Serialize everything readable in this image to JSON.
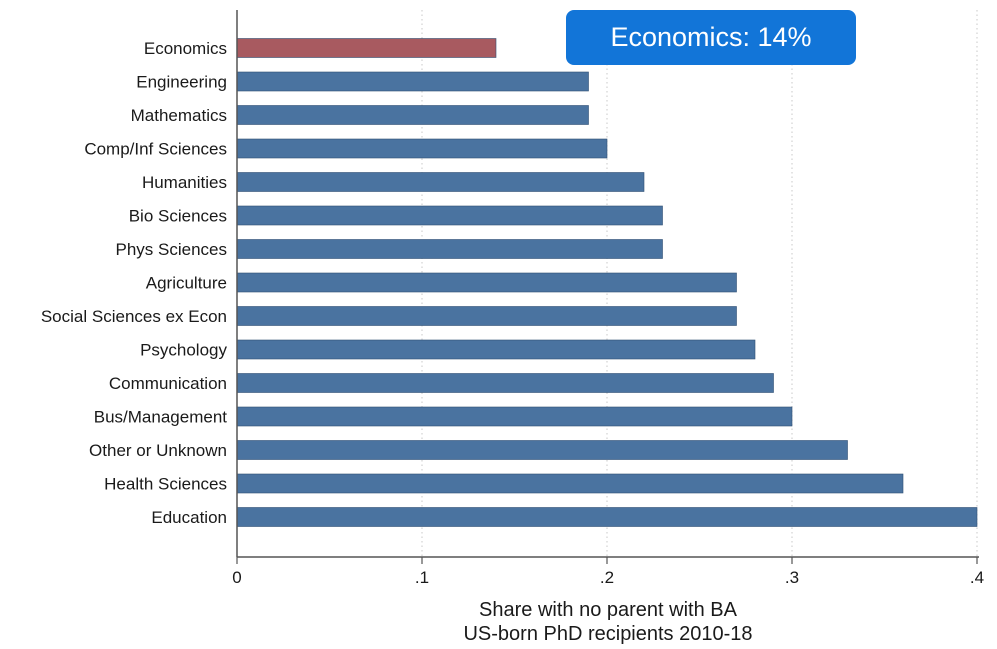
{
  "chart_data": {
    "type": "bar",
    "orientation": "horizontal",
    "categories": [
      "Economics",
      "Engineering",
      "Mathematics",
      "Comp/Inf Sciences",
      "Humanities",
      "Bio Sciences",
      "Phys Sciences",
      "Agriculture",
      "Social Sciences ex Econ",
      "Psychology",
      "Communication",
      "Bus/Management",
      "Other or Unknown",
      "Health Sciences",
      "Education"
    ],
    "values": [
      0.14,
      0.19,
      0.19,
      0.2,
      0.22,
      0.23,
      0.23,
      0.27,
      0.27,
      0.28,
      0.29,
      0.3,
      0.33,
      0.36,
      0.4
    ],
    "highlight_category": "Economics",
    "xlabel_line1": "Share with no parent with BA",
    "xlabel_line2": "US-born PhD recipients 2010-18",
    "xlim": [
      0,
      0.4
    ],
    "xticks": [
      0,
      0.1,
      0.2,
      0.3,
      0.4
    ],
    "xtick_labels": [
      "0",
      ".1",
      ".2",
      ".3",
      ".4"
    ],
    "grid": "vertical dotted",
    "colors": {
      "bar": "#4a73a0",
      "highlight": "#a85a60",
      "grid": "#c8c8c8",
      "axis": "#555555"
    },
    "annotation": {
      "text": "Economics: 14%",
      "color": "#1275d8",
      "placement": "top-right"
    }
  }
}
